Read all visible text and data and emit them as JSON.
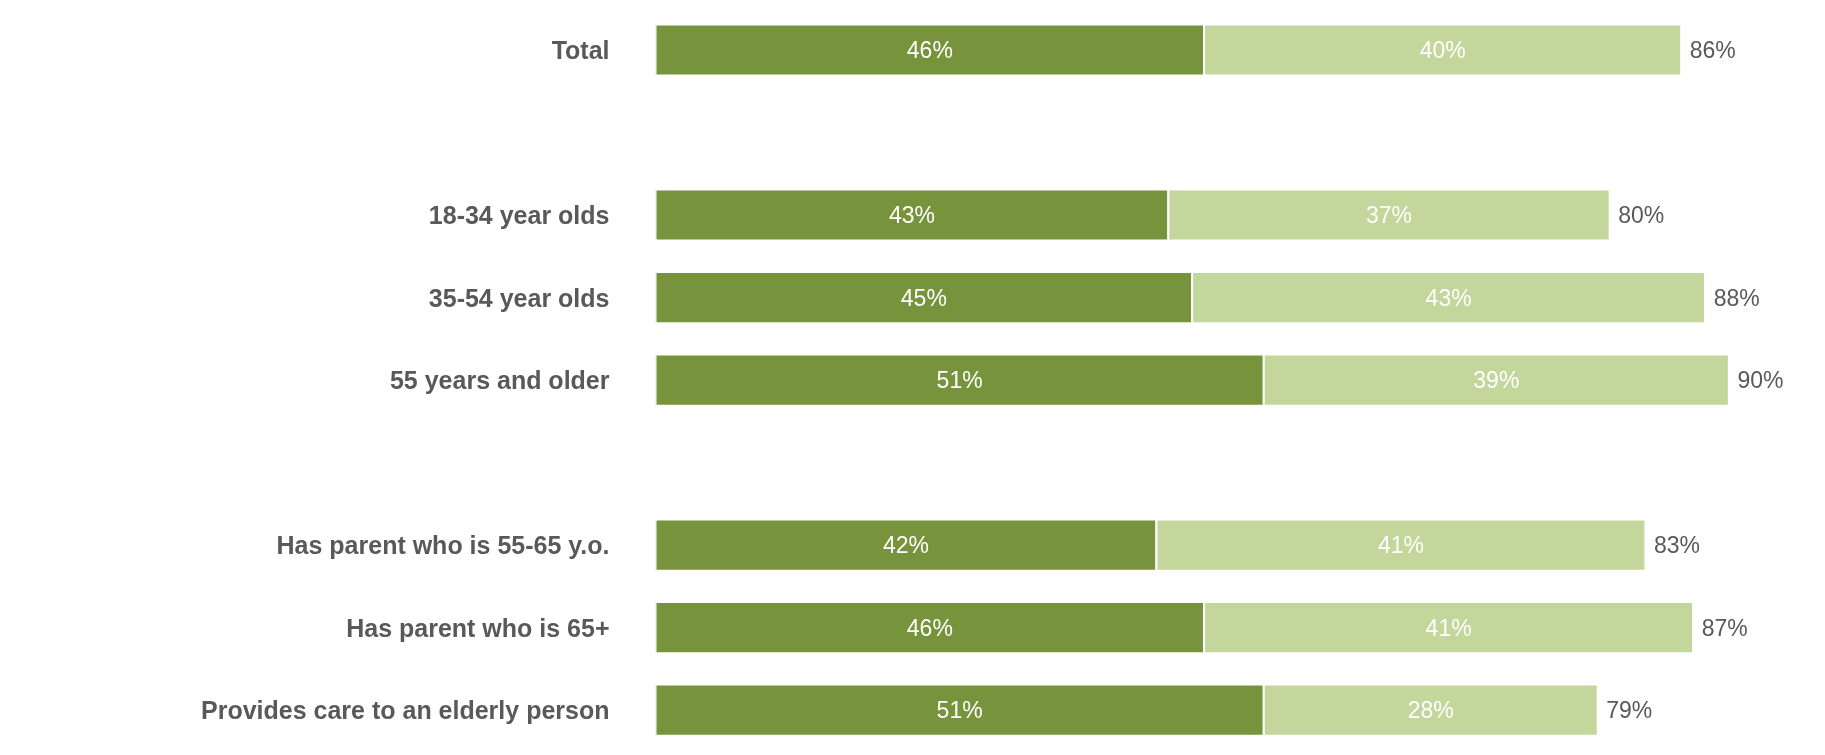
{
  "chart_data": {
    "type": "bar",
    "orientation": "horizontal",
    "stacked": true,
    "categories": [
      "Total",
      null,
      "18-34 year olds",
      "35-54 year olds",
      "55 years and older",
      null,
      "Has parent who is 55-65 y.o.",
      "Has parent who is 65+",
      "Provides care to an elderly person"
    ],
    "series": [
      {
        "color": "#77933c",
        "values": [
          46,
          null,
          43,
          45,
          51,
          null,
          42,
          46,
          51
        ],
        "value_labels": [
          "46%",
          null,
          "43%",
          "45%",
          "51%",
          null,
          "42%",
          "46%",
          "51%"
        ]
      },
      {
        "color": "#c3d69b",
        "values": [
          40,
          null,
          37,
          43,
          39,
          null,
          41,
          41,
          28
        ],
        "value_labels": [
          "40%",
          null,
          "37%",
          "43%",
          "39%",
          null,
          "41%",
          "41%",
          "28%"
        ]
      }
    ],
    "totals": [
      "86%",
      null,
      "80%",
      "88%",
      "90%",
      null,
      "83%",
      "87%",
      "79%"
    ],
    "grid": false,
    "tick_labels": "y"
  }
}
